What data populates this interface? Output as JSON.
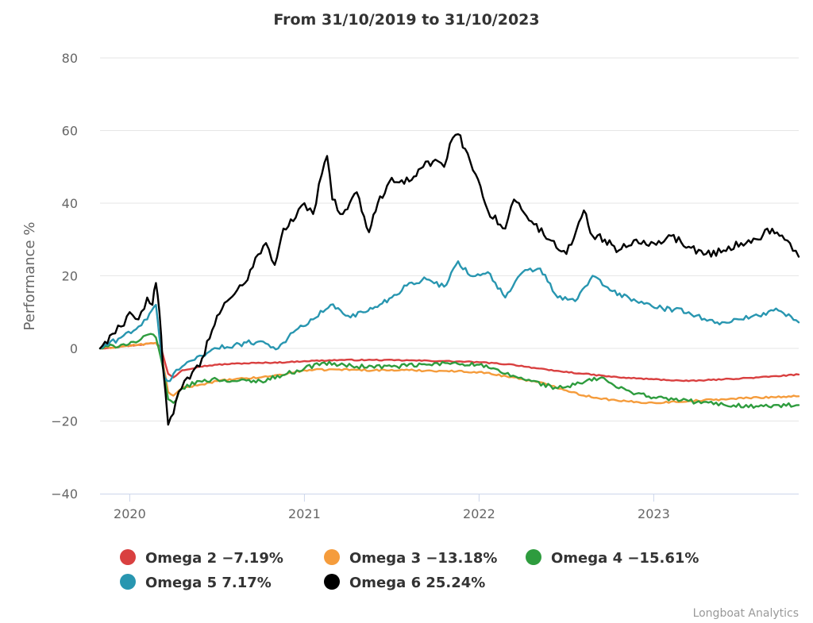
{
  "chart_data": {
    "type": "line",
    "title": "From 31/10/2019 to 31/10/2023",
    "xlabel": "",
    "ylabel": "Performance %",
    "xlim": [
      2019.83,
      2023.83
    ],
    "ylim": [
      -40,
      80
    ],
    "yticks": [
      -40,
      -20,
      0,
      20,
      40,
      60,
      80
    ],
    "ytick_labels": [
      "−40",
      "−20",
      "0",
      "20",
      "40",
      "60",
      "80"
    ],
    "xticks": [
      2020,
      2021,
      2022,
      2023
    ],
    "xtick_labels": [
      "2020",
      "2021",
      "2022",
      "2023"
    ],
    "grid": true,
    "legend_position": "bottom",
    "series": [
      {
        "name": "Omega 2",
        "legend_label": "Omega 2 −7.19%",
        "color": "#d94040",
        "x": [
          2019.83,
          2019.95,
          2020.05,
          2020.15,
          2020.18,
          2020.22,
          2020.25,
          2020.3,
          2020.4,
          2020.5,
          2020.6,
          2020.75,
          2020.9,
          2021.0,
          2021.2,
          2021.4,
          2021.6,
          2021.8,
          2022.0,
          2022.2,
          2022.4,
          2022.6,
          2022.8,
          2023.0,
          2023.2,
          2023.4,
          2023.6,
          2023.83
        ],
        "values": [
          0,
          0.5,
          1,
          1.5,
          0,
          -7,
          -8,
          -6,
          -5,
          -4.5,
          -4.2,
          -4,
          -3.8,
          -3.5,
          -3.2,
          -3.2,
          -3.3,
          -3.5,
          -3.8,
          -4.5,
          -6,
          -7,
          -8,
          -8.5,
          -9,
          -8.5,
          -8,
          -7.19
        ]
      },
      {
        "name": "Omega 3",
        "legend_label": "Omega 3 −13.18%",
        "color": "#f59c3c",
        "x": [
          2019.83,
          2019.95,
          2020.05,
          2020.15,
          2020.18,
          2020.22,
          2020.25,
          2020.3,
          2020.4,
          2020.5,
          2020.6,
          2020.75,
          2020.9,
          2021.0,
          2021.2,
          2021.4,
          2021.6,
          2021.8,
          2022.0,
          2022.2,
          2022.4,
          2022.6,
          2022.8,
          2023.0,
          2023.2,
          2023.4,
          2023.6,
          2023.83
        ],
        "values": [
          0,
          0.5,
          1,
          1.5,
          -1,
          -12,
          -13,
          -11,
          -10,
          -9,
          -8.5,
          -8,
          -7,
          -6,
          -5.8,
          -6,
          -6,
          -6.2,
          -6.5,
          -8,
          -10,
          -13,
          -14.5,
          -15,
          -14.5,
          -14,
          -13.5,
          -13.18
        ]
      },
      {
        "name": "Omega 4",
        "legend_label": "Omega 4 −15.61%",
        "color": "#2e9c3e",
        "x": [
          2019.83,
          2019.95,
          2020.05,
          2020.12,
          2020.15,
          2020.18,
          2020.22,
          2020.25,
          2020.3,
          2020.4,
          2020.5,
          2020.6,
          2020.75,
          2020.9,
          2021.0,
          2021.1,
          2021.3,
          2021.5,
          2021.7,
          2021.85,
          2022.0,
          2022.15,
          2022.3,
          2022.45,
          2022.55,
          2022.7,
          2022.8,
          2023.0,
          2023.2,
          2023.4,
          2023.6,
          2023.83
        ],
        "values": [
          0,
          1,
          2,
          4,
          3,
          -3,
          -14,
          -15,
          -11,
          -9,
          -8.5,
          -9,
          -9,
          -7,
          -5.5,
          -4,
          -5,
          -5,
          -4.5,
          -4,
          -4.5,
          -7,
          -9,
          -11,
          -10,
          -8,
          -11,
          -13.5,
          -14.5,
          -15.5,
          -16,
          -15.61
        ]
      },
      {
        "name": "Omega 5",
        "legend_label": "Omega 5 7.17%",
        "color": "#2896b0",
        "x": [
          2019.83,
          2019.95,
          2020.05,
          2020.1,
          2020.15,
          2020.17,
          2020.2,
          2020.23,
          2020.25,
          2020.3,
          2020.4,
          2020.5,
          2020.6,
          2020.75,
          2020.85,
          2020.95,
          2021.05,
          2021.15,
          2021.25,
          2021.35,
          2021.5,
          2021.6,
          2021.7,
          2021.8,
          2021.88,
          2021.95,
          2022.05,
          2022.15,
          2022.25,
          2022.35,
          2022.45,
          2022.55,
          2022.65,
          2022.75,
          2022.9,
          2023.05,
          2023.2,
          2023.35,
          2023.5,
          2023.6,
          2023.7,
          2023.83
        ],
        "values": [
          0,
          3,
          6,
          8,
          12,
          3,
          -8,
          -9,
          -7,
          -5,
          -2,
          0,
          1,
          2,
          0,
          5,
          8,
          12,
          9,
          10,
          14,
          18,
          19,
          17,
          24,
          20,
          21,
          14,
          21,
          22,
          14,
          13,
          20,
          16,
          13,
          11,
          10,
          7,
          8,
          9,
          11,
          7.17
        ]
      },
      {
        "name": "Omega 6",
        "legend_label": "Omega 6 25.24%",
        "color": "#000000",
        "x": [
          2019.83,
          2019.9,
          2019.95,
          2020.0,
          2020.05,
          2020.1,
          2020.13,
          2020.15,
          2020.17,
          2020.19,
          2020.22,
          2020.25,
          2020.28,
          2020.33,
          2020.4,
          2020.5,
          2020.6,
          2020.66,
          2020.72,
          2020.78,
          2020.83,
          2020.88,
          2020.95,
          2021.0,
          2021.05,
          2021.1,
          2021.13,
          2021.16,
          2021.22,
          2021.3,
          2021.37,
          2021.42,
          2021.5,
          2021.6,
          2021.68,
          2021.75,
          2021.8,
          2021.85,
          2021.88,
          2021.92,
          2021.98,
          2022.05,
          2022.15,
          2022.2,
          2022.3,
          2022.4,
          2022.5,
          2022.6,
          2022.65,
          2022.72,
          2022.8,
          2022.9,
          2023.0,
          2023.1,
          2023.2,
          2023.3,
          2023.4,
          2023.5,
          2023.6,
          2023.65,
          2023.72,
          2023.78,
          2023.83
        ],
        "values": [
          0,
          4,
          6,
          10,
          8,
          14,
          12,
          18,
          10,
          -5,
          -21,
          -18,
          -12,
          -8,
          -5,
          9,
          15,
          18,
          25,
          29,
          23,
          33,
          36,
          40,
          37,
          48,
          53,
          41,
          37,
          43,
          32,
          40,
          47,
          46,
          50,
          52,
          50,
          58,
          59,
          55,
          48,
          38,
          33,
          41,
          35,
          30,
          26,
          38,
          31,
          30,
          27,
          30,
          29,
          31,
          28,
          26,
          27,
          29,
          30,
          33,
          31,
          29,
          25.24
        ]
      }
    ],
    "credits": "Longboat Analytics"
  }
}
